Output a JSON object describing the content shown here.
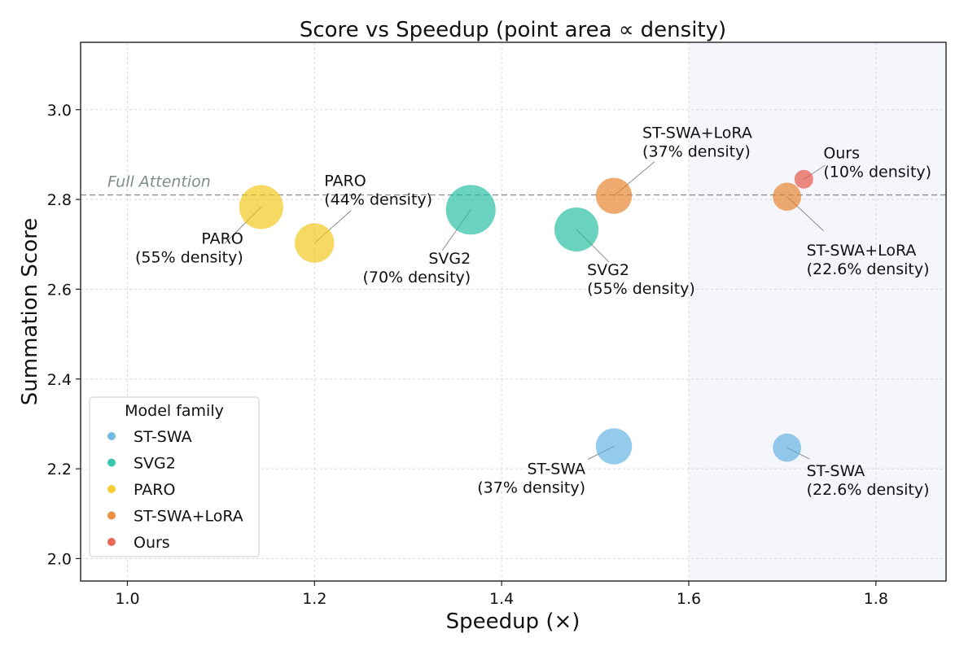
{
  "chart_data": {
    "type": "scatter",
    "title": "Score vs Speedup (point area ∝ density)",
    "xlabel": "Speedup (×)",
    "ylabel": "Summation Score",
    "xlim": [
      0.95,
      1.875
    ],
    "ylim": [
      1.95,
      3.15
    ],
    "xticks": [
      1.0,
      1.2,
      1.4,
      1.6,
      1.8
    ],
    "xtick_labels": [
      "1.0",
      "1.2",
      "1.4",
      "1.6",
      "1.8"
    ],
    "yticks": [
      2.0,
      2.2,
      2.4,
      2.6,
      2.8,
      3.0
    ],
    "ytick_labels": [
      "2.0",
      "2.2",
      "2.4",
      "2.6",
      "2.8",
      "3.0"
    ],
    "grid": true,
    "shaded_region_x": [
      1.6,
      1.875
    ],
    "reference_line": {
      "y": 2.81,
      "label": "Full Attention"
    },
    "legend": {
      "title": "Model family",
      "position": "lower-left",
      "entries": [
        {
          "label": "ST-SWA",
          "color": "#5aaee0"
        },
        {
          "label": "SVG2",
          "color": "#1abc9c"
        },
        {
          "label": "PARO",
          "color": "#f1c40f"
        },
        {
          "label": "ST-SWA+LoRA",
          "color": "#e67e22"
        },
        {
          "label": "Ours",
          "color": "#e74c3c"
        }
      ]
    },
    "points": [
      {
        "family": "PARO",
        "x": 1.143,
        "y": 2.783,
        "density": 55,
        "name": "PARO",
        "detail": "(55% density)",
        "label_pos": "left",
        "color": "#f1c40f"
      },
      {
        "family": "PARO",
        "x": 1.2,
        "y": 2.703,
        "density": 44,
        "name": "PARO",
        "detail": "(44% density)",
        "label_pos": "upper-right",
        "color": "#f1c40f"
      },
      {
        "family": "SVG2",
        "x": 1.367,
        "y": 2.777,
        "density": 70,
        "name": "SVG2",
        "detail": "(70% density)",
        "label_pos": "lower-left",
        "color": "#1abc9c"
      },
      {
        "family": "SVG2",
        "x": 1.48,
        "y": 2.733,
        "density": 55,
        "name": "SVG2",
        "detail": "(55% density)",
        "label_pos": "lower-right",
        "color": "#1abc9c"
      },
      {
        "family": "ST-SWA+LoRA",
        "x": 1.52,
        "y": 2.808,
        "density": 37,
        "name": "ST-SWA+LoRA",
        "detail": "(37% density)",
        "label_pos": "upper-right",
        "color": "#e67e22"
      },
      {
        "family": "ST-SWA+LoRA",
        "x": 1.705,
        "y": 2.806,
        "density": 22.6,
        "name": "ST-SWA+LoRA",
        "detail": "(22.6% density)",
        "label_pos": "lower-right",
        "color": "#e67e22"
      },
      {
        "family": "Ours",
        "x": 1.723,
        "y": 2.845,
        "density": 10,
        "name": "Ours",
        "detail": "(10% density)",
        "label_pos": "upper-right",
        "color": "#e74c3c"
      },
      {
        "family": "ST-SWA",
        "x": 1.52,
        "y": 2.25,
        "density": 37,
        "name": "ST-SWA",
        "detail": "(37% density)",
        "label_pos": "lower-left",
        "color": "#5aaee0"
      },
      {
        "family": "ST-SWA",
        "x": 1.705,
        "y": 2.247,
        "density": 22.6,
        "name": "ST-SWA",
        "detail": "(22.6% density)",
        "label_pos": "lower-right",
        "color": "#5aaee0"
      }
    ]
  }
}
